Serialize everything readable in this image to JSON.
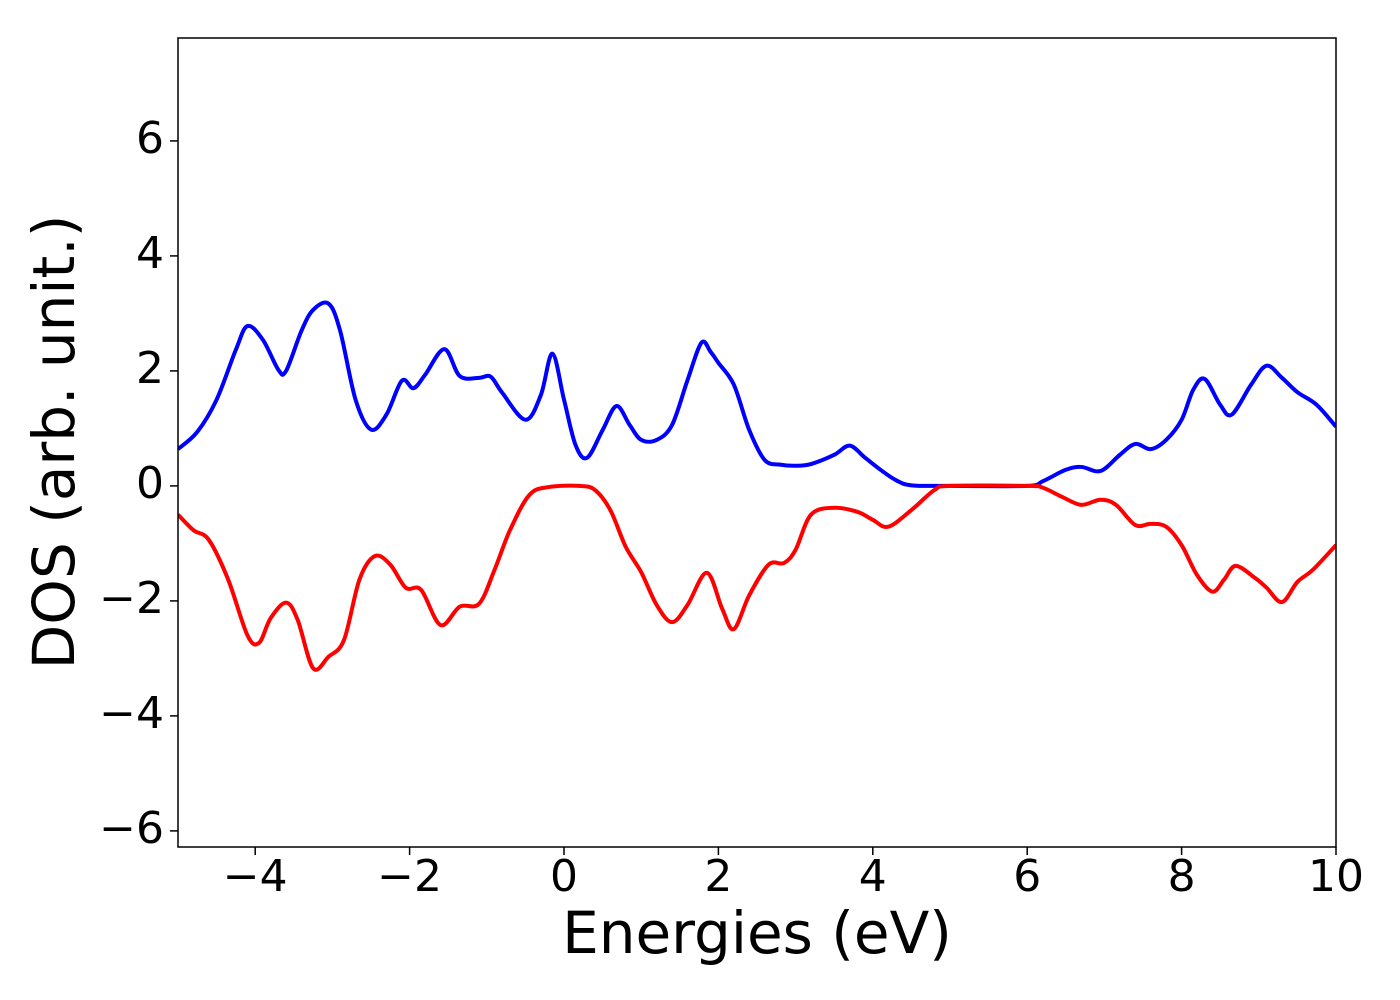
{
  "chart_data": {
    "type": "line",
    "xlabel": "Energies (eV)",
    "ylabel": "DOS (arb. unit.)",
    "xlim": [
      -5,
      10
    ],
    "ylim": [
      -6.28,
      7.79
    ],
    "xticks": [
      {
        "value": -4,
        "label": "−4"
      },
      {
        "value": -2,
        "label": "−2"
      },
      0,
      2,
      4,
      6,
      8,
      10
    ],
    "yticks": [
      {
        "value": -6,
        "label": "−6"
      },
      {
        "value": -4,
        "label": "−4"
      },
      {
        "value": -2,
        "label": "−2"
      },
      0,
      2,
      4,
      6
    ],
    "grid": false,
    "series": [
      {
        "color": "#0000ff",
        "x": [
          -5,
          -4.75,
          -4.5,
          -4.25,
          -4.1,
          -3.9,
          -3.7,
          -3.6,
          -3.4,
          -3.25,
          -3.05,
          -2.9,
          -2.7,
          -2.5,
          -2.3,
          -2.1,
          -1.95,
          -1.8,
          -1.55,
          -1.35,
          -1.1,
          -0.95,
          -0.8,
          -0.5,
          -0.3,
          -0.15,
          0,
          0.15,
          0.3,
          0.5,
          0.68,
          0.85,
          1.0,
          1.2,
          1.4,
          1.6,
          1.78,
          1.9,
          2.0,
          2.2,
          2.4,
          2.6,
          2.8,
          3.0,
          3.2,
          3.5,
          3.7,
          3.9,
          4.1,
          4.3,
          4.5,
          5.0,
          6.0,
          6.2,
          6.5,
          6.7,
          6.95,
          7.2,
          7.4,
          7.6,
          7.8,
          8.0,
          8.15,
          8.3,
          8.5,
          8.65,
          8.9,
          9.1,
          9.3,
          9.5,
          9.75,
          10
        ],
        "values": [
          0.64,
          0.94,
          1.5,
          2.37,
          2.78,
          2.54,
          2.02,
          2.0,
          2.7,
          3.06,
          3.17,
          2.7,
          1.5,
          0.98,
          1.24,
          1.83,
          1.7,
          1.93,
          2.38,
          1.91,
          1.88,
          1.9,
          1.62,
          1.15,
          1.58,
          2.3,
          1.5,
          0.71,
          0.49,
          0.97,
          1.39,
          1.06,
          0.8,
          0.8,
          1.06,
          1.84,
          2.49,
          2.33,
          2.14,
          1.76,
          0.97,
          0.45,
          0.37,
          0.35,
          0.38,
          0.54,
          0.7,
          0.49,
          0.28,
          0.1,
          0.01,
          0,
          0,
          0.08,
          0.28,
          0.33,
          0.26,
          0.54,
          0.73,
          0.64,
          0.8,
          1.15,
          1.67,
          1.86,
          1.41,
          1.24,
          1.76,
          2.09,
          1.88,
          1.63,
          1.41,
          1.03
        ]
      },
      {
        "color": "#ff0000",
        "x": [
          -5,
          -4.8,
          -4.6,
          -4.35,
          -4.1,
          -3.95,
          -3.8,
          -3.6,
          -3.45,
          -3.25,
          -3.05,
          -2.85,
          -2.65,
          -2.45,
          -2.25,
          -2.05,
          -1.85,
          -1.6,
          -1.35,
          -1.1,
          -0.9,
          -0.7,
          -0.45,
          -0.2,
          0.2,
          0.4,
          0.6,
          0.8,
          1.0,
          1.2,
          1.4,
          1.6,
          1.85,
          2.05,
          2.2,
          2.4,
          2.65,
          2.85,
          3.0,
          3.2,
          3.5,
          3.8,
          4.0,
          4.2,
          4.5,
          4.8,
          5.0,
          6.0,
          6.2,
          6.45,
          6.7,
          6.95,
          7.15,
          7.4,
          7.6,
          7.8,
          8.0,
          8.2,
          8.4,
          8.55,
          8.7,
          8.95,
          9.1,
          9.3,
          9.5,
          9.7,
          10
        ],
        "values": [
          -0.5,
          -0.77,
          -0.94,
          -1.63,
          -2.6,
          -2.73,
          -2.3,
          -2.03,
          -2.33,
          -3.17,
          -2.97,
          -2.68,
          -1.63,
          -1.22,
          -1.37,
          -1.77,
          -1.81,
          -2.42,
          -2.1,
          -2.05,
          -1.46,
          -0.77,
          -0.16,
          -0.02,
          0,
          -0.07,
          -0.42,
          -1.06,
          -1.5,
          -2.07,
          -2.37,
          -2.07,
          -1.51,
          -2.14,
          -2.49,
          -1.9,
          -1.37,
          -1.34,
          -1.11,
          -0.5,
          -0.38,
          -0.45,
          -0.59,
          -0.71,
          -0.42,
          -0.07,
          0,
          0,
          -0.03,
          -0.19,
          -0.33,
          -0.24,
          -0.33,
          -0.68,
          -0.66,
          -0.71,
          -1.03,
          -1.55,
          -1.84,
          -1.63,
          -1.39,
          -1.6,
          -1.77,
          -2.02,
          -1.67,
          -1.46,
          -1.03
        ]
      }
    ]
  }
}
